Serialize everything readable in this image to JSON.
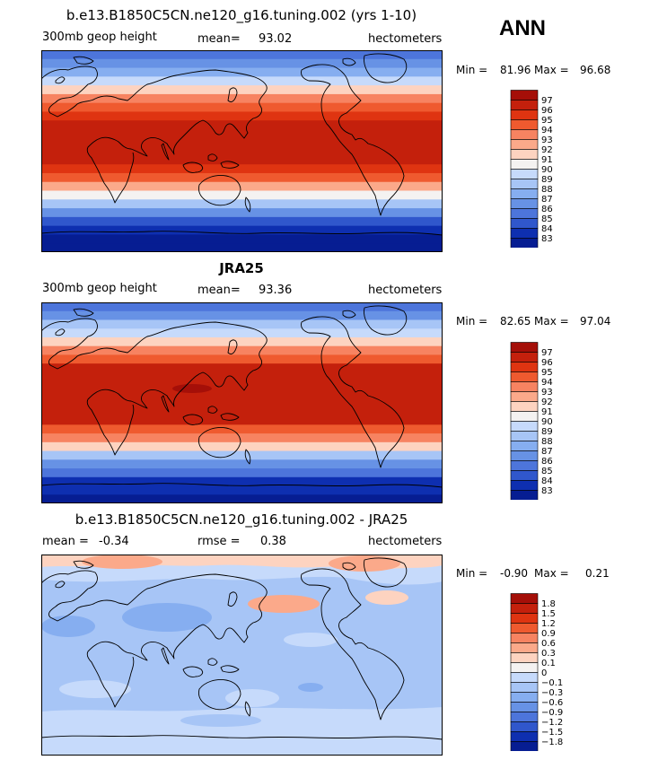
{
  "season": "ANN",
  "chart_data": [
    {
      "type": "heatmap",
      "title": "b.e13.B1850C5CN.ne120_g16.tuning.002 (yrs 1-10)",
      "variable_label": "300mb geop height",
      "mean_label": "mean=",
      "mean": "93.02",
      "units": "hectometers",
      "min_label": "Min =",
      "min": "81.96",
      "max_label": "Max =",
      "max": "96.68",
      "legend_levels": [
        "97",
        "96",
        "95",
        "94",
        "93",
        "92",
        "91",
        "90",
        "89",
        "88",
        "87",
        "86",
        "85",
        "84",
        "83"
      ],
      "legend_colors": [
        "#a50f08",
        "#c4200c",
        "#df3411",
        "#ef5a2f",
        "#f78361",
        "#fba98a",
        "#fdd3c0",
        "#f4f2f1",
        "#c6dafb",
        "#a7c5f6",
        "#86aef0",
        "#6792e5",
        "#4d75db",
        "#3057cc",
        "#0e2fb0",
        "#061d92"
      ],
      "zonal_levels": [
        85.0,
        86.3,
        87.8,
        89.5,
        91.3,
        93.1,
        94.6,
        95.8,
        96.3,
        96.6,
        96.6,
        96.6,
        96.4,
        95.7,
        94.4,
        92.7,
        90.7,
        88.6,
        86.6,
        84.8,
        83.5,
        82.6,
        82.2
      ]
    },
    {
      "type": "heatmap",
      "title": "JRA25",
      "variable_label": "300mb geop height",
      "mean_label": "mean=",
      "mean": "93.36",
      "units": "hectometers",
      "min_label": "Min =",
      "min": "82.65",
      "max_label": "Max =",
      "max": "97.04",
      "legend_levels": [
        "97",
        "96",
        "95",
        "94",
        "93",
        "92",
        "91",
        "90",
        "89",
        "88",
        "87",
        "86",
        "85",
        "84",
        "83"
      ],
      "legend_colors": [
        "#a50f08",
        "#c4200c",
        "#df3411",
        "#ef5a2f",
        "#f78361",
        "#fba98a",
        "#fdd3c0",
        "#f4f2f1",
        "#c6dafb",
        "#a7c5f6",
        "#86aef0",
        "#6792e5",
        "#4d75db",
        "#3057cc",
        "#0e2fb0",
        "#061d92"
      ],
      "zonal_levels": [
        85.4,
        86.6,
        88.1,
        89.8,
        91.6,
        93.4,
        94.9,
        96.1,
        96.6,
        96.9,
        96.9,
        96.9,
        96.7,
        96.0,
        94.7,
        93.0,
        91.0,
        88.9,
        86.9,
        85.1,
        83.8,
        83.0,
        82.7
      ]
    },
    {
      "type": "heatmap",
      "title": "b.e13.B1850C5CN.ne120_g16.tuning.002 - JRA25",
      "mean_label": "mean =",
      "mean": "-0.34",
      "rmse_label": "rmse =",
      "rmse": "0.38",
      "units": "hectometers",
      "min_label": "Min =",
      "min": "-0.90",
      "max_label": "Max =",
      "max": "0.21",
      "legend_levels": [
        "1.8",
        "1.5",
        "1.2",
        "0.9",
        "0.6",
        "0.3",
        "0.1",
        "0",
        "-0.1",
        "-0.3",
        "-0.6",
        "-0.9",
        "-1.2",
        "-1.5",
        "-1.8"
      ],
      "legend_colors": [
        "#a50f08",
        "#c4200c",
        "#df3411",
        "#ef5a2f",
        "#f78361",
        "#fba98a",
        "#fdd3c0",
        "#f4f2f1",
        "#c6dafb",
        "#a7c5f6",
        "#86aef0",
        "#6792e5",
        "#4d75db",
        "#3057cc",
        "#0e2fb0",
        "#061d92"
      ]
    }
  ]
}
